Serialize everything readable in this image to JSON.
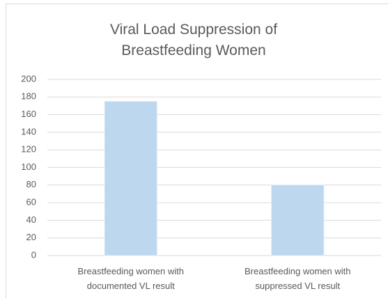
{
  "chart_data": {
    "type": "bar",
    "title": "Viral Load Suppression of Breastfeeding Women",
    "categories": [
      "Breastfeeding women with documented VL result",
      "Breastfeeding women with suppressed VL result"
    ],
    "values": [
      175,
      80
    ],
    "color": "#bdd7ee",
    "ylim": [
      0,
      200
    ],
    "yticks": [
      0,
      20,
      40,
      60,
      80,
      100,
      120,
      140,
      160,
      180,
      200
    ],
    "grid": true
  }
}
